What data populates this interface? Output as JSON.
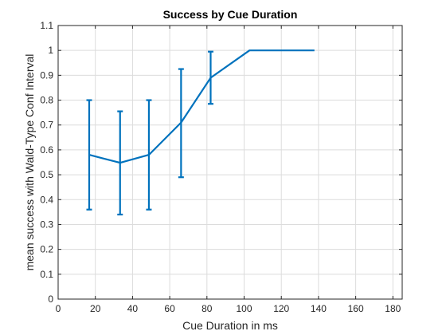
{
  "chart_data": {
    "type": "line",
    "title": "Success by Cue Duration",
    "xlabel": "Cue Duration in ms",
    "ylabel": "mean success with Wald-Type Conf Interval",
    "xlim": [
      0,
      185
    ],
    "ylim": [
      0,
      1.1
    ],
    "xticks": [
      0,
      20,
      40,
      60,
      80,
      100,
      120,
      140,
      160,
      180
    ],
    "yticks": [
      0,
      0.1,
      0.2,
      0.3,
      0.4,
      0.5,
      0.6,
      0.7,
      0.8,
      0.9,
      1,
      1.1
    ],
    "xtick_labels": [
      "0",
      "20",
      "40",
      "60",
      "80",
      "100",
      "120",
      "140",
      "160",
      "180"
    ],
    "ytick_labels": [
      "0",
      "0.1",
      "0.2",
      "0.3",
      "0.4",
      "0.5",
      "0.6",
      "0.7",
      "0.8",
      "0.9",
      "1",
      "1.1"
    ],
    "grid": true,
    "box": true,
    "series": [
      {
        "color": "#0072bd",
        "x": [
          16.7,
          33.3,
          48.8,
          66.1,
          82.0,
          102.9,
          137.8
        ],
        "y": [
          0.58,
          0.548,
          0.58,
          0.71,
          0.89,
          1.0,
          1.0
        ],
        "lower": [
          0.36,
          0.34,
          0.36,
          0.49,
          0.785,
          null,
          null
        ],
        "upper": [
          0.8,
          0.755,
          0.8,
          0.925,
          0.995,
          null,
          null
        ]
      }
    ]
  }
}
